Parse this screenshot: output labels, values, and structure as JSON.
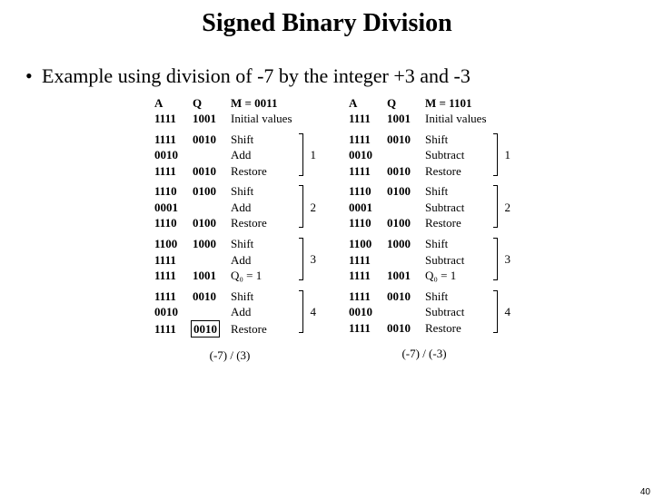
{
  "title": "Signed Binary Division",
  "bullet": "Example using division of -7 by the integer +3 and -3",
  "page_number": "40",
  "left": {
    "header": {
      "A": "A",
      "Q": "Q",
      "M": "M = 0011"
    },
    "groups": [
      {
        "label": "",
        "rows": [
          {
            "A": "1111",
            "Q": "1001",
            "op": "Initial values"
          }
        ]
      },
      {
        "label": "1",
        "rows": [
          {
            "A": "1111",
            "Q": "0010",
            "op": "Shift"
          },
          {
            "A": "0010",
            "Q": "",
            "op": "Add"
          },
          {
            "A": "1111",
            "Q": "0010",
            "op": "Restore"
          }
        ]
      },
      {
        "label": "2",
        "rows": [
          {
            "A": "1110",
            "Q": "0100",
            "op": "Shift"
          },
          {
            "A": "0001",
            "Q": "",
            "op": "Add"
          },
          {
            "A": "1110",
            "Q": "0100",
            "op": "Restore"
          }
        ]
      },
      {
        "label": "3",
        "rows": [
          {
            "A": "1100",
            "Q": "1000",
            "op": "Shift"
          },
          {
            "A": "1111",
            "Q": "",
            "op": "Add"
          },
          {
            "A": "1111",
            "Q": "1001",
            "op": "Q₀ = 1"
          }
        ]
      },
      {
        "label": "4",
        "rows": [
          {
            "A": "1111",
            "Q": "0010",
            "op": "Shift"
          },
          {
            "A": "0010",
            "Q": "",
            "op": "Add"
          },
          {
            "A": "1111",
            "Q": "0010",
            "op": "Restore",
            "boxQ": true
          }
        ]
      }
    ],
    "caption": "(-7) / (3)"
  },
  "right": {
    "header": {
      "A": "A",
      "Q": "Q",
      "M": "M = 1101"
    },
    "groups": [
      {
        "label": "",
        "rows": [
          {
            "A": "1111",
            "Q": "1001",
            "op": "Initial values"
          }
        ]
      },
      {
        "label": "1",
        "rows": [
          {
            "A": "1111",
            "Q": "0010",
            "op": "Shift"
          },
          {
            "A": "0010",
            "Q": "",
            "op": "Subtract"
          },
          {
            "A": "1111",
            "Q": "0010",
            "op": "Restore"
          }
        ]
      },
      {
        "label": "2",
        "rows": [
          {
            "A": "1110",
            "Q": "0100",
            "op": "Shift"
          },
          {
            "A": "0001",
            "Q": "",
            "op": "Subtract"
          },
          {
            "A": "1110",
            "Q": "0100",
            "op": "Restore"
          }
        ]
      },
      {
        "label": "3",
        "rows": [
          {
            "A": "1100",
            "Q": "1000",
            "op": "Shift"
          },
          {
            "A": "1111",
            "Q": "",
            "op": "Subtract"
          },
          {
            "A": "1111",
            "Q": "1001",
            "op": "Q₀ = 1"
          }
        ]
      },
      {
        "label": "4",
        "rows": [
          {
            "A": "1111",
            "Q": "0010",
            "op": "Shift"
          },
          {
            "A": "0010",
            "Q": "",
            "op": "Subtract"
          },
          {
            "A": "1111",
            "Q": "0010",
            "op": "Restore"
          }
        ]
      }
    ],
    "caption": "(-7) / (-3)"
  }
}
